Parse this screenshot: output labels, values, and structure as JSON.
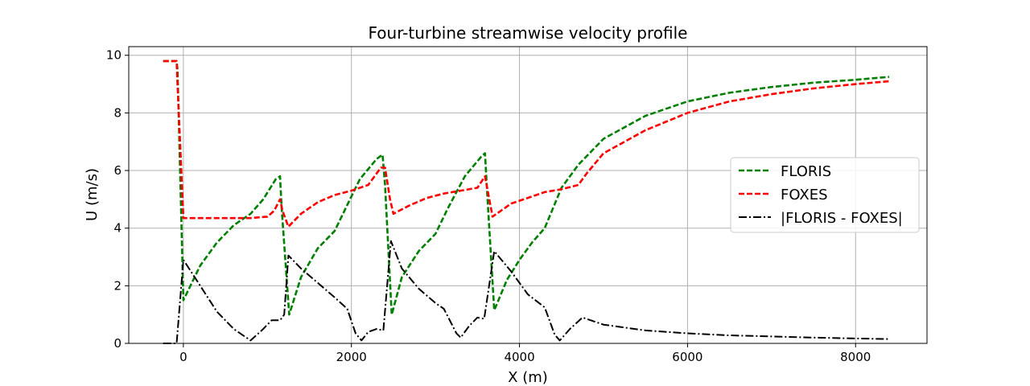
{
  "chart_data": {
    "type": "line",
    "title": "Four-turbine streamwise velocity profile",
    "xlabel": "X (m)",
    "ylabel": "U (m/s)",
    "xlim": [
      -650,
      8850
    ],
    "ylim": [
      0,
      10.3
    ],
    "xticks": [
      0,
      2000,
      4000,
      6000,
      8000
    ],
    "yticks": [
      0,
      2,
      4,
      6,
      8,
      10
    ],
    "grid": true,
    "legend_position": "right",
    "series": [
      {
        "name": "FLORIS",
        "color": "#008000",
        "style": "dashed",
        "points": [
          [
            -240,
            9.8
          ],
          [
            -80,
            9.8
          ],
          [
            -70,
            9.5
          ],
          [
            0,
            1.5
          ],
          [
            200,
            2.7
          ],
          [
            400,
            3.5
          ],
          [
            600,
            4.1
          ],
          [
            800,
            4.5
          ],
          [
            950,
            5.0
          ],
          [
            1100,
            5.7
          ],
          [
            1150,
            5.8
          ],
          [
            1170,
            4.7
          ],
          [
            1260,
            1.0
          ],
          [
            1400,
            2.3
          ],
          [
            1600,
            3.3
          ],
          [
            1800,
            3.9
          ],
          [
            1950,
            4.8
          ],
          [
            2100,
            5.7
          ],
          [
            2300,
            6.4
          ],
          [
            2370,
            6.55
          ],
          [
            2400,
            5.5
          ],
          [
            2480,
            1.0
          ],
          [
            2600,
            2.3
          ],
          [
            2800,
            3.2
          ],
          [
            3000,
            3.8
          ],
          [
            3150,
            4.7
          ],
          [
            3350,
            5.8
          ],
          [
            3550,
            6.5
          ],
          [
            3590,
            6.6
          ],
          [
            3620,
            5.0
          ],
          [
            3700,
            1.15
          ],
          [
            3850,
            2.2
          ],
          [
            4000,
            2.9
          ],
          [
            4150,
            3.5
          ],
          [
            4300,
            4.0
          ],
          [
            4500,
            5.4
          ],
          [
            4700,
            6.2
          ],
          [
            5000,
            7.1
          ],
          [
            5500,
            7.9
          ],
          [
            6000,
            8.4
          ],
          [
            6500,
            8.7
          ],
          [
            7000,
            8.9
          ],
          [
            7500,
            9.05
          ],
          [
            8000,
            9.15
          ],
          [
            8400,
            9.25
          ]
        ]
      },
      {
        "name": "FOXES",
        "color": "#ff0000",
        "style": "dashed",
        "points": [
          [
            -240,
            9.8
          ],
          [
            -80,
            9.8
          ],
          [
            -70,
            9.0
          ],
          [
            0,
            4.35
          ],
          [
            200,
            4.35
          ],
          [
            500,
            4.35
          ],
          [
            800,
            4.35
          ],
          [
            1000,
            4.4
          ],
          [
            1080,
            4.6
          ],
          [
            1150,
            5.0
          ],
          [
            1180,
            4.6
          ],
          [
            1250,
            4.05
          ],
          [
            1400,
            4.5
          ],
          [
            1600,
            4.9
          ],
          [
            1800,
            5.15
          ],
          [
            2000,
            5.3
          ],
          [
            2200,
            5.5
          ],
          [
            2350,
            6.1
          ],
          [
            2400,
            6.1
          ],
          [
            2460,
            5.0
          ],
          [
            2500,
            4.5
          ],
          [
            2700,
            4.8
          ],
          [
            2900,
            5.05
          ],
          [
            3100,
            5.2
          ],
          [
            3300,
            5.3
          ],
          [
            3500,
            5.4
          ],
          [
            3590,
            5.8
          ],
          [
            3680,
            4.4
          ],
          [
            3900,
            4.85
          ],
          [
            4100,
            5.05
          ],
          [
            4300,
            5.25
          ],
          [
            4500,
            5.35
          ],
          [
            4700,
            5.5
          ],
          [
            4800,
            5.9
          ],
          [
            5000,
            6.6
          ],
          [
            5500,
            7.4
          ],
          [
            6000,
            8.0
          ],
          [
            6500,
            8.4
          ],
          [
            7000,
            8.65
          ],
          [
            7500,
            8.85
          ],
          [
            8000,
            9.0
          ],
          [
            8400,
            9.1
          ]
        ]
      },
      {
        "name": "|FLORIS - FOXES|",
        "color": "#000000",
        "style": "dashdot",
        "points": [
          [
            -240,
            0.0
          ],
          [
            -80,
            0.0
          ],
          [
            0,
            2.9
          ],
          [
            200,
            2.0
          ],
          [
            400,
            1.1
          ],
          [
            600,
            0.5
          ],
          [
            800,
            0.1
          ],
          [
            950,
            0.5
          ],
          [
            1050,
            0.8
          ],
          [
            1150,
            0.8
          ],
          [
            1200,
            1.0
          ],
          [
            1250,
            3.05
          ],
          [
            1400,
            2.6
          ],
          [
            1600,
            2.1
          ],
          [
            1800,
            1.6
          ],
          [
            1950,
            1.2
          ],
          [
            2050,
            0.35
          ],
          [
            2120,
            0.1
          ],
          [
            2200,
            0.4
          ],
          [
            2300,
            0.5
          ],
          [
            2380,
            0.45
          ],
          [
            2470,
            3.55
          ],
          [
            2600,
            2.6
          ],
          [
            2800,
            1.9
          ],
          [
            3000,
            1.4
          ],
          [
            3100,
            1.2
          ],
          [
            3250,
            0.35
          ],
          [
            3300,
            0.2
          ],
          [
            3400,
            0.6
          ],
          [
            3500,
            0.9
          ],
          [
            3580,
            0.85
          ],
          [
            3700,
            3.2
          ],
          [
            3900,
            2.5
          ],
          [
            4100,
            1.7
          ],
          [
            4300,
            1.25
          ],
          [
            4420,
            0.3
          ],
          [
            4480,
            0.1
          ],
          [
            4600,
            0.5
          ],
          [
            4750,
            0.9
          ],
          [
            5000,
            0.65
          ],
          [
            5500,
            0.45
          ],
          [
            6000,
            0.35
          ],
          [
            6500,
            0.28
          ],
          [
            7000,
            0.24
          ],
          [
            7500,
            0.2
          ],
          [
            8000,
            0.17
          ],
          [
            8400,
            0.15
          ]
        ]
      }
    ]
  }
}
